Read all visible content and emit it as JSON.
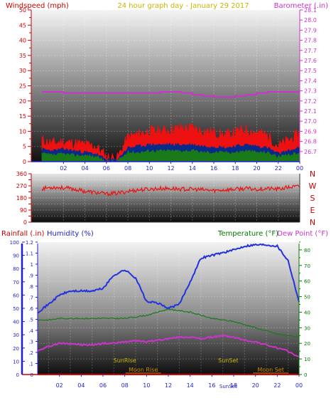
{
  "header": {
    "left_label": "Windspeed (mph)",
    "center_title": "24 hour graph day - January 29 2017",
    "right_label": "Barometer (.in)"
  },
  "colors": {
    "wind_avg": "#0a2a8a",
    "wind_gust": "#ee1111",
    "wind_low": "#1a7a1a",
    "barometer": "#cc33cc",
    "direction": "#ee1111",
    "humidity": "#2233dd",
    "temperature": "#1a7a1a",
    "dewpoint": "#cc33cc",
    "rain": "#dd1111",
    "title": "#c8b400",
    "label_red": "#cc0000",
    "label_blue": "#1f1fcc",
    "label_green": "#007700",
    "label_orange": "#cc8800"
  },
  "chart_data": [
    {
      "type": "line",
      "name": "wind-barometer",
      "x_ticks": [
        "02",
        "04",
        "06",
        "08",
        "10",
        "12",
        "14",
        "16",
        "18",
        "20",
        "22",
        "00"
      ],
      "ylabel_left": "Windspeed (mph)",
      "ylim_left": [
        0,
        50
      ],
      "yticks_left": [
        0,
        2.5,
        5,
        7.5,
        10,
        12.5,
        15,
        17.5,
        20,
        22.5,
        25,
        27.5,
        30,
        32.5,
        35,
        37.5,
        40,
        42.5,
        45,
        47.5,
        50
      ],
      "ylabel_right": "Barometer (.in)",
      "ylim_right": [
        26.6,
        28.1
      ],
      "yticks_right": [
        26.7,
        26.8,
        26.9,
        27.0,
        27.1,
        27.2,
        27.3,
        27.4,
        27.5,
        27.6,
        27.7,
        27.8,
        27.9,
        28.0,
        28.1
      ],
      "grid": true,
      "x": [
        0,
        1,
        2,
        3,
        4,
        5,
        6,
        7,
        8,
        9,
        10,
        11,
        12,
        13,
        14,
        15,
        16,
        17,
        18,
        19,
        20,
        21,
        22,
        23,
        24
      ],
      "series": [
        {
          "key": "gust",
          "axis": "left",
          "values": [
            7,
            6,
            6.5,
            6,
            5.5,
            5,
            1.5,
            1,
            8,
            9,
            10,
            10,
            10.5,
            11,
            11,
            10,
            9.5,
            8.5,
            9.5,
            10.5,
            9.5,
            8.5,
            5,
            7,
            9
          ]
        },
        {
          "key": "avg",
          "axis": "left",
          "values": [
            4,
            3.5,
            4,
            3.5,
            3,
            2.5,
            0.5,
            0.5,
            4.5,
            5,
            5.5,
            5.5,
            5.5,
            5.5,
            5.5,
            5,
            5,
            4.5,
            5,
            5.5,
            5,
            4.5,
            2.5,
            3.5,
            4.5
          ]
        },
        {
          "key": "low",
          "axis": "left",
          "values": [
            2.5,
            2,
            2.5,
            2,
            2,
            1.5,
            0,
            0,
            3,
            3,
            3.5,
            3.5,
            3.5,
            3.5,
            3.5,
            3,
            3,
            3,
            3,
            3.5,
            3,
            3,
            1.5,
            2,
            3
          ]
        },
        {
          "key": "barometer",
          "axis": "right",
          "values": [
            27.29,
            27.29,
            27.28,
            27.28,
            27.28,
            27.28,
            27.28,
            27.28,
            27.28,
            27.28,
            27.28,
            27.29,
            27.29,
            27.28,
            27.26,
            27.25,
            27.24,
            27.24,
            27.25,
            27.26,
            27.28,
            27.29,
            27.29,
            27.29,
            27.29
          ]
        }
      ]
    },
    {
      "type": "line",
      "name": "wind-direction",
      "x_ticks": [
        "02",
        "04",
        "06",
        "08",
        "10",
        "12",
        "14",
        "16",
        "18",
        "20",
        "22",
        "00"
      ],
      "ylim": [
        0,
        360
      ],
      "yticks": [
        0,
        45,
        90,
        135,
        180,
        225,
        270,
        315,
        360
      ],
      "ytick_labels": [
        "0",
        "",
        "90",
        "",
        "180",
        "",
        "270",
        "",
        "360"
      ],
      "compass_labels": [
        "N",
        "W",
        "S",
        "E",
        "N"
      ],
      "grid": true,
      "x": [
        0,
        1,
        2,
        3,
        4,
        5,
        6,
        7,
        8,
        9,
        10,
        11,
        12,
        13,
        14,
        15,
        16,
        17,
        18,
        19,
        20,
        21,
        22,
        23,
        24
      ],
      "series": [
        {
          "key": "direction",
          "values": [
            250,
            260,
            255,
            245,
            230,
            220,
            210,
            215,
            230,
            240,
            245,
            250,
            250,
            245,
            245,
            240,
            235,
            240,
            245,
            250,
            245,
            250,
            245,
            260,
            265
          ]
        }
      ]
    },
    {
      "type": "line",
      "name": "temp-humidity",
      "labels": {
        "rainfall": "Rainfall (.in)",
        "humidity": "Humidity (%)",
        "temperature": "Temperature (°F)",
        "dewpoint": "Dew Point (°F)"
      },
      "x_ticks": [
        "02",
        "04",
        "06",
        "08",
        "10",
        "12",
        "14",
        "16",
        "18",
        "20",
        "22",
        "00"
      ],
      "ylim_humidity": [
        0,
        100
      ],
      "yticks_humidity": [
        0,
        10,
        20,
        30,
        40,
        50,
        60,
        70,
        80,
        90,
        100
      ],
      "ylim_rain": [
        0,
        1.2
      ],
      "yticks_rain": [
        0,
        0.1,
        0.2,
        0.3,
        0.4,
        0.5,
        0.6,
        0.7,
        0.8,
        0.9,
        1,
        1.1,
        1.2
      ],
      "ylim_temp": [
        0,
        85
      ],
      "yticks_temp": [
        0,
        5,
        10,
        15,
        20,
        25,
        30,
        35,
        40,
        45,
        50,
        55,
        60,
        65,
        70,
        75,
        80,
        85
      ],
      "grid": true,
      "x": [
        0,
        1,
        2,
        3,
        4,
        5,
        6,
        7,
        8,
        9,
        10,
        11,
        12,
        13,
        14,
        15,
        16,
        17,
        18,
        19,
        20,
        21,
        22,
        23,
        24
      ],
      "series": [
        {
          "key": "humidity",
          "axis": "humidity",
          "values": [
            47,
            53,
            60,
            63,
            63,
            63,
            65,
            75,
            79,
            73,
            55,
            54,
            50,
            53,
            70,
            88,
            90,
            92,
            94,
            97,
            98,
            98,
            97,
            86,
            55
          ]
        },
        {
          "key": "temperature",
          "axis": "temp",
          "values": [
            35,
            35,
            36,
            36,
            36,
            36,
            36,
            36,
            36,
            37,
            38,
            40,
            42,
            41,
            40,
            38,
            36,
            35,
            34,
            32,
            30,
            28,
            26,
            25,
            24
          ]
        },
        {
          "key": "dewpoint",
          "axis": "temp",
          "values": [
            15,
            18,
            20,
            20,
            19,
            19,
            20,
            20,
            21,
            22,
            21,
            22,
            23,
            24,
            24,
            23,
            24,
            25,
            24,
            22,
            21,
            19,
            17,
            15,
            11
          ]
        },
        {
          "key": "rain",
          "axis": "rain",
          "values": [
            0,
            0,
            0,
            0,
            0,
            0,
            0,
            0,
            0,
            0,
            0,
            0,
            0,
            0,
            0,
            0,
            0,
            0,
            0,
            0,
            0,
            0,
            0,
            0,
            0
          ]
        }
      ],
      "events": [
        {
          "label": "SunRise",
          "x": 8.0,
          "row": "upper"
        },
        {
          "label": "SunSet",
          "x": 17.5,
          "row": "upper"
        },
        {
          "label": "Moon Rise",
          "x": 9.7,
          "row": "lower"
        },
        {
          "label": "Moon Set",
          "x": 21.4,
          "row": "lower"
        },
        {
          "label": "SunSet",
          "x": 17.5,
          "row": "bottom"
        }
      ]
    }
  ]
}
